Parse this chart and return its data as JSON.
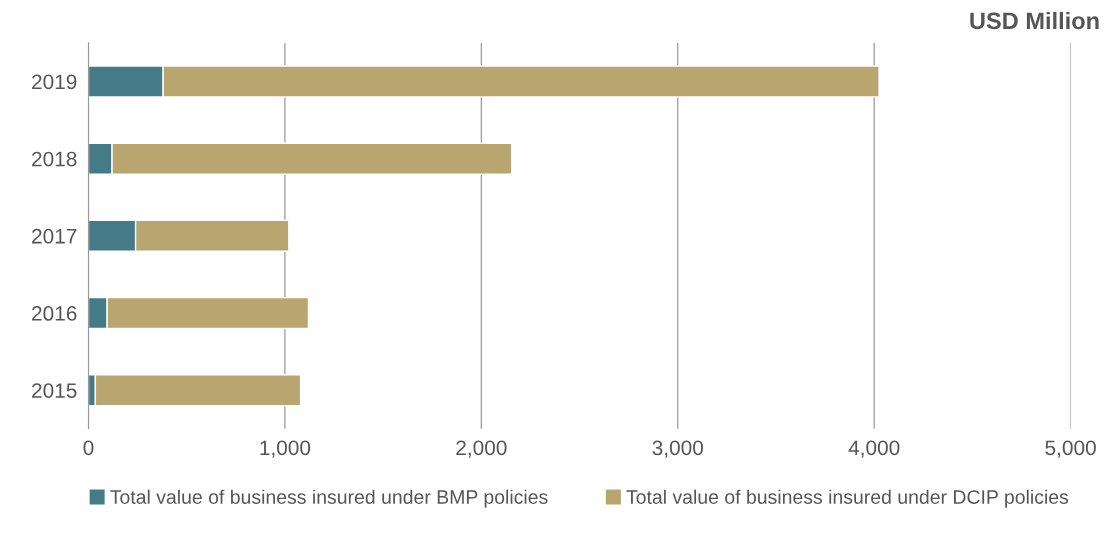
{
  "chart_data": {
    "type": "bar",
    "orientation": "horizontal",
    "stacked": true,
    "xlabel": "USD Million",
    "categories": [
      "2019",
      "2018",
      "2017",
      "2016",
      "2015"
    ],
    "series": [
      {
        "name": "Total value of business insured under BMP policies",
        "color": "#457a87",
        "values": [
          380,
          120,
          240,
          95,
          35
        ]
      },
      {
        "name": "Total value of business insured under DCIP policies",
        "color": "#b9a570",
        "values": [
          3645,
          2035,
          780,
          1025,
          1045
        ]
      }
    ],
    "xlim": [
      0,
      5000
    ],
    "xticks": [
      {
        "value": 0,
        "label": "0"
      },
      {
        "value": 1000,
        "label": "1,000"
      },
      {
        "value": 2000,
        "label": "2,000"
      },
      {
        "value": 3000,
        "label": "3,000"
      },
      {
        "value": 4000,
        "label": "4,000"
      },
      {
        "value": 5000,
        "label": "5,000"
      }
    ],
    "grid": "x",
    "legend": "bottom"
  }
}
